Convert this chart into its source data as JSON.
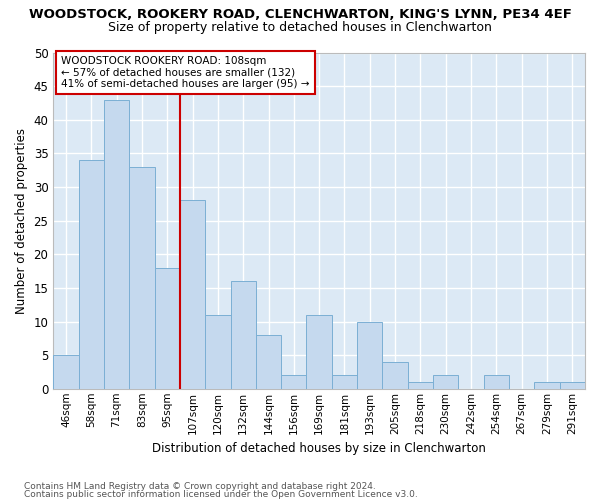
{
  "title1": "WOODSTOCK, ROOKERY ROAD, CLENCHWARTON, KING'S LYNN, PE34 4EF",
  "title2": "Size of property relative to detached houses in Clenchwarton",
  "xlabel": "Distribution of detached houses by size in Clenchwarton",
  "ylabel": "Number of detached properties",
  "categories": [
    "46sqm",
    "58sqm",
    "71sqm",
    "83sqm",
    "95sqm",
    "107sqm",
    "120sqm",
    "132sqm",
    "144sqm",
    "156sqm",
    "169sqm",
    "181sqm",
    "193sqm",
    "205sqm",
    "218sqm",
    "230sqm",
    "242sqm",
    "254sqm",
    "267sqm",
    "279sqm",
    "291sqm"
  ],
  "values": [
    5,
    34,
    43,
    33,
    18,
    28,
    11,
    16,
    8,
    2,
    11,
    2,
    10,
    4,
    1,
    2,
    0,
    2,
    0,
    1,
    1
  ],
  "bar_color": "#c5d9ee",
  "bar_edge_color": "#7bafd4",
  "highlight_index": 5,
  "highlight_line_color": "#cc0000",
  "annotation_line1": "WOODSTOCK ROOKERY ROAD: 108sqm",
  "annotation_line2": "← 57% of detached houses are smaller (132)",
  "annotation_line3": "41% of semi-detached houses are larger (95) →",
  "annotation_box_color": "#ffffff",
  "annotation_box_edge": "#cc0000",
  "ylim": [
    0,
    50
  ],
  "yticks": [
    0,
    5,
    10,
    15,
    20,
    25,
    30,
    35,
    40,
    45,
    50
  ],
  "bg_color": "#dce9f5",
  "grid_color": "#ffffff",
  "fig_bg_color": "#ffffff",
  "footer1": "Contains HM Land Registry data © Crown copyright and database right 2024.",
  "footer2": "Contains public sector information licensed under the Open Government Licence v3.0."
}
